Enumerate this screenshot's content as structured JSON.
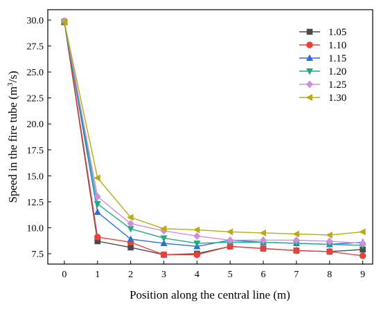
{
  "chart_data": {
    "type": "line",
    "title": "",
    "xlabel": "Position along the central line (m)",
    "ylabel_main": "Speed in the fire tube (m",
    "ylabel_sup": "3",
    "ylabel_tail": "/s)",
    "xlim": [
      -0.5,
      9.3
    ],
    "ylim": [
      6.5,
      31.0
    ],
    "xticks": [
      0,
      1,
      2,
      3,
      4,
      5,
      6,
      7,
      8,
      9
    ],
    "yticks": [
      7.5,
      10.0,
      12.5,
      15.0,
      17.5,
      20.0,
      22.5,
      25.0,
      27.5,
      30.0
    ],
    "ytick_labels": [
      "7.5",
      "10.0",
      "12.5",
      "15.0",
      "17.5",
      "20.0",
      "22.5",
      "25.0",
      "27.5",
      "30.0"
    ],
    "legend_position": "top-right",
    "grid": false,
    "x": [
      0,
      1,
      2,
      3,
      4,
      5,
      6,
      7,
      8,
      9
    ],
    "series": [
      {
        "name": "1.05",
        "color": "#4a4a4a",
        "marker": "square",
        "values": [
          29.8,
          8.7,
          8.1,
          7.4,
          7.5,
          8.2,
          8.0,
          7.8,
          7.7,
          7.9
        ]
      },
      {
        "name": "1.10",
        "color": "#e8413a",
        "marker": "circle",
        "values": [
          29.9,
          9.1,
          8.6,
          7.4,
          7.4,
          8.2,
          8.0,
          7.8,
          7.7,
          7.3
        ]
      },
      {
        "name": "1.15",
        "color": "#2a6fd6",
        "marker": "triangle-up",
        "values": [
          29.8,
          11.5,
          8.9,
          8.5,
          8.2,
          8.8,
          8.6,
          8.5,
          8.4,
          8.6
        ]
      },
      {
        "name": "1.20",
        "color": "#1aae7a",
        "marker": "triangle-down",
        "values": [
          29.8,
          12.3,
          9.9,
          9.0,
          8.5,
          8.6,
          8.6,
          8.5,
          8.4,
          8.3
        ]
      },
      {
        "name": "1.25",
        "color": "#cf8ee0",
        "marker": "diamond",
        "values": [
          29.9,
          13.0,
          10.4,
          9.7,
          9.2,
          8.8,
          8.8,
          8.8,
          8.7,
          8.5
        ]
      },
      {
        "name": "1.30",
        "color": "#b9ab10",
        "marker": "triangle-left",
        "values": [
          29.8,
          14.8,
          11.0,
          9.9,
          9.8,
          9.6,
          9.5,
          9.4,
          9.3,
          9.6
        ]
      }
    ]
  }
}
